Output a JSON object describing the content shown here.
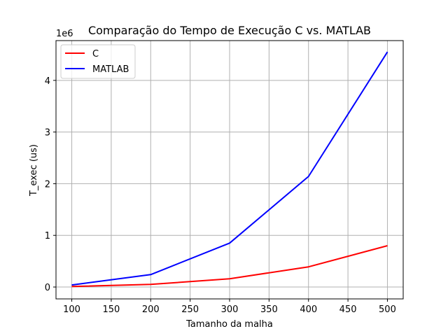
{
  "chart_data": {
    "type": "line",
    "title": "Comparação do Tempo de Execução C vs. MATLAB",
    "xlabel": "Tamanho da malha",
    "ylabel": "T_exec (us)",
    "y_multiplier_label": "1e6",
    "x": [
      100,
      200,
      300,
      400,
      500
    ],
    "xlim": [
      80,
      520
    ],
    "ylim": [
      -0.23,
      4.77
    ],
    "y_scale_factor": 1000000,
    "xticks": [
      100,
      150,
      200,
      250,
      300,
      350,
      400,
      450,
      500
    ],
    "yticks": [
      0,
      1,
      2,
      3,
      4
    ],
    "grid": true,
    "legend_position": "top-left",
    "series": [
      {
        "name": "C",
        "color": "#ff0000",
        "values": [
          0.01,
          0.05,
          0.16,
          0.39,
          0.8
        ]
      },
      {
        "name": "MATLAB",
        "color": "#0000ff",
        "values": [
          0.04,
          0.24,
          0.85,
          2.14,
          4.55
        ]
      }
    ]
  }
}
